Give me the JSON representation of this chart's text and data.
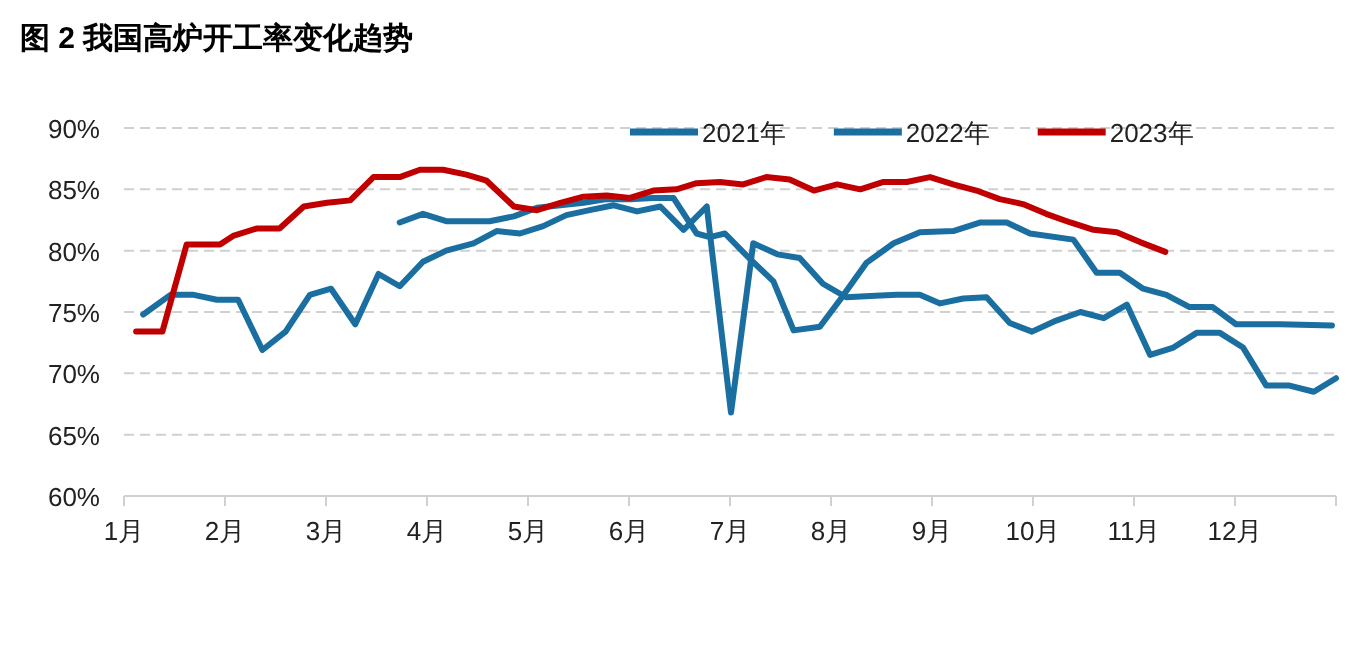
{
  "chart_data": {
    "type": "line",
    "title": "图 2 我国高炉开工率变化趋势",
    "xlim": [
      1,
      13
    ],
    "xticks": [
      {
        "value": 1,
        "label": "1月"
      },
      {
        "value": 2,
        "label": "2月"
      },
      {
        "value": 3,
        "label": "3月"
      },
      {
        "value": 4,
        "label": "4月"
      },
      {
        "value": 5,
        "label": "5月"
      },
      {
        "value": 6,
        "label": "6月"
      },
      {
        "value": 7,
        "label": "7月"
      },
      {
        "value": 8,
        "label": "8月"
      },
      {
        "value": 9,
        "label": "9月"
      },
      {
        "value": 10,
        "label": "10月"
      },
      {
        "value": 11,
        "label": "11月"
      },
      {
        "value": 12,
        "label": "12月"
      },
      {
        "value": 13,
        "label": null
      }
    ],
    "ylim": [
      60,
      90
    ],
    "yticks": [
      {
        "value": 60,
        "label": "60%"
      },
      {
        "value": 65,
        "label": "65%"
      },
      {
        "value": 70,
        "label": "70%"
      },
      {
        "value": 75,
        "label": "75%"
      },
      {
        "value": 80,
        "label": "80%"
      },
      {
        "value": 85,
        "label": "85%"
      },
      {
        "value": 90,
        "label": "90%"
      }
    ],
    "grid": "y",
    "legend": "top right",
    "line_style": "solid",
    "marker": "none",
    "series": [
      {
        "name": "2021年",
        "color": "#1a6fa0",
        "x": [
          3.73,
          3.96,
          4.19,
          4.52,
          4.62,
          4.86,
          5.09,
          5.32,
          5.55,
          5.78,
          6.01,
          6.24,
          6.44,
          6.67,
          6.8,
          6.95,
          7.2,
          7.43,
          7.63,
          7.89,
          8.09,
          8.35,
          8.62,
          8.88,
          9.21,
          9.48,
          9.74,
          9.97,
          10.4,
          10.63,
          10.86,
          11.09,
          11.32,
          11.55,
          11.78,
          12.01,
          12.45,
          12.96
        ],
        "values": [
          82.3,
          83.0,
          82.4,
          82.4,
          82.4,
          82.8,
          83.5,
          83.7,
          83.9,
          84.2,
          84.2,
          84.3,
          84.3,
          81.4,
          81.1,
          81.4,
          79.3,
          77.5,
          73.5,
          73.8,
          76.0,
          79.0,
          80.6,
          81.5,
          81.6,
          82.3,
          82.3,
          81.4,
          80.9,
          78.2,
          78.2,
          76.9,
          76.4,
          75.4,
          75.4,
          74.0,
          74.0,
          73.9
        ]
      },
      {
        "name": "2022年",
        "color": "#1a6fa0",
        "x": [
          1.19,
          1.46,
          1.69,
          1.92,
          2.13,
          2.37,
          2.6,
          2.84,
          3.05,
          3.29,
          3.52,
          3.73,
          3.96,
          4.19,
          4.46,
          4.69,
          4.92,
          5.15,
          5.38,
          5.61,
          5.85,
          6.08,
          6.31,
          6.54,
          6.77,
          7.01,
          7.23,
          7.47,
          7.69,
          7.92,
          8.15,
          8.39,
          8.65,
          8.88,
          9.08,
          9.31,
          9.54,
          9.77,
          9.99,
          10.23,
          10.47,
          10.7,
          10.93,
          11.16,
          11.39,
          11.62,
          11.85,
          12.08,
          12.31,
          12.54,
          12.78,
          13.0
        ],
        "values": [
          74.8,
          76.4,
          76.4,
          76.0,
          76.0,
          71.9,
          73.4,
          76.4,
          76.9,
          74.0,
          78.1,
          77.1,
          79.1,
          80.0,
          80.6,
          81.6,
          81.4,
          82.0,
          82.9,
          83.3,
          83.7,
          83.2,
          83.6,
          81.7,
          83.6,
          66.8,
          80.6,
          79.7,
          79.4,
          77.3,
          76.2,
          76.3,
          76.4,
          76.4,
          75.7,
          76.1,
          76.2,
          74.1,
          73.4,
          74.3,
          75.0,
          74.5,
          75.6,
          71.5,
          72.1,
          73.3,
          73.3,
          72.1,
          69.0,
          69.0,
          68.5,
          69.6
        ]
      },
      {
        "name": "2023年",
        "color": "#c00000",
        "x": [
          1.12,
          1.38,
          1.62,
          1.95,
          2.08,
          2.31,
          2.54,
          2.78,
          3.01,
          3.24,
          3.47,
          3.73,
          3.93,
          4.16,
          4.39,
          4.59,
          4.86,
          5.09,
          5.32,
          5.55,
          5.78,
          6.01,
          6.24,
          6.47,
          6.67,
          6.9,
          7.13,
          7.36,
          7.59,
          7.83,
          8.06,
          8.29,
          8.52,
          8.75,
          8.98,
          9.21,
          9.44,
          9.67,
          9.9,
          10.13,
          10.37,
          10.6,
          10.83,
          11.06,
          11.31
        ],
        "values": [
          73.4,
          73.4,
          80.5,
          80.5,
          81.2,
          81.8,
          81.8,
          83.6,
          83.9,
          84.1,
          86.0,
          86.0,
          86.6,
          86.6,
          86.2,
          85.7,
          83.6,
          83.3,
          83.9,
          84.4,
          84.5,
          84.3,
          84.9,
          85.0,
          85.5,
          85.6,
          85.4,
          86.0,
          85.8,
          84.9,
          85.4,
          85.0,
          85.6,
          85.6,
          86.0,
          85.4,
          84.9,
          84.2,
          83.8,
          83.0,
          82.3,
          81.7,
          81.5,
          80.7,
          79.9
        ]
      }
    ]
  }
}
